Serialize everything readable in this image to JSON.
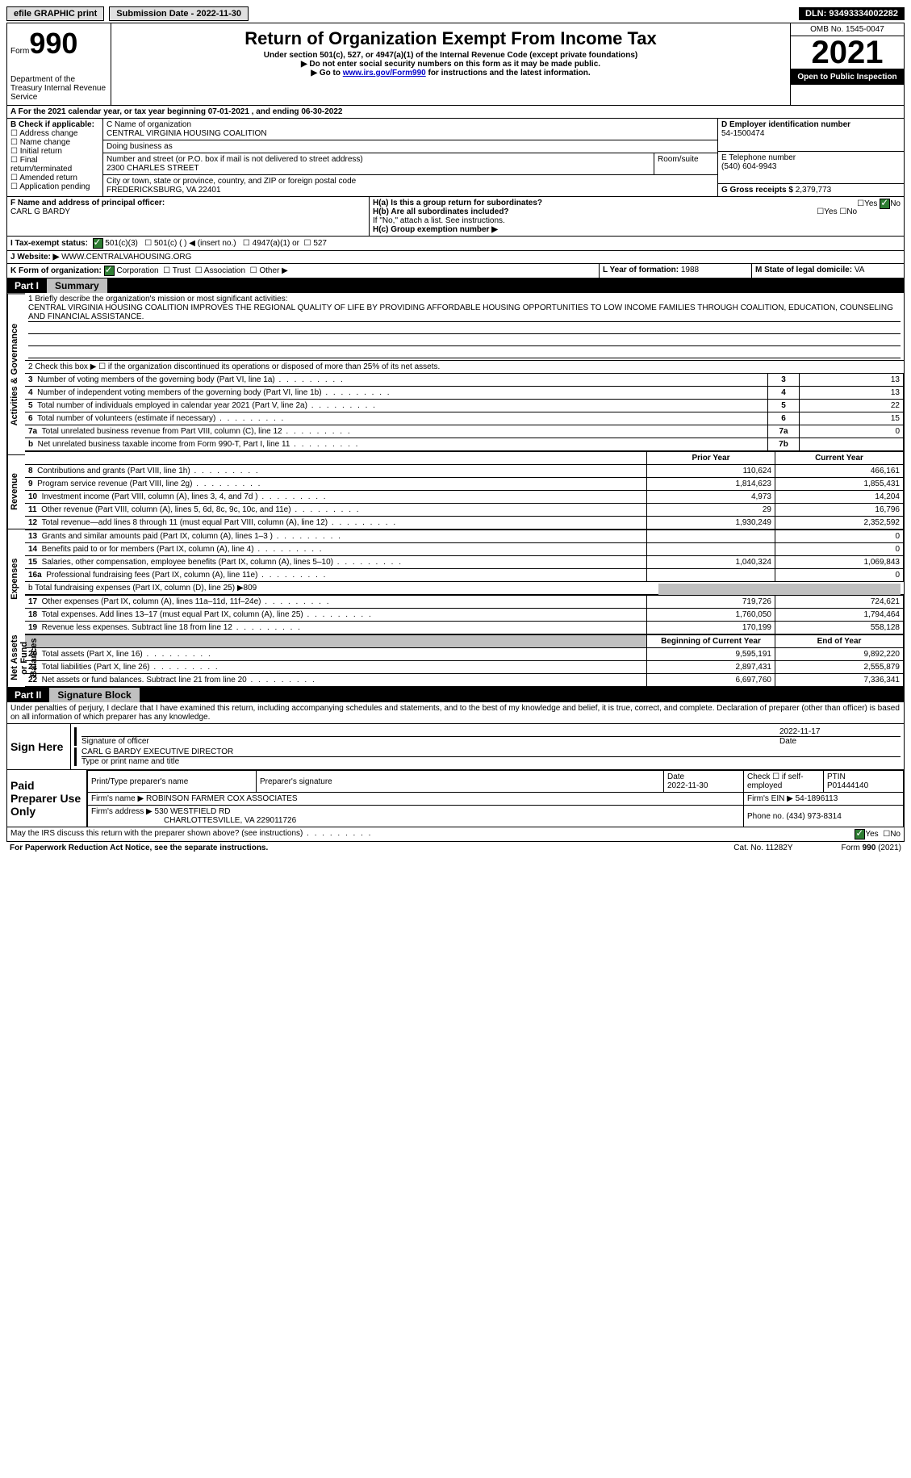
{
  "topbar": {
    "efile": "efile GRAPHIC print",
    "submission_label": "Submission Date - ",
    "submission_date": "2022-11-30",
    "dln_label": "DLN: ",
    "dln": "93493334002282"
  },
  "header": {
    "form_word": "Form",
    "form_num": "990",
    "dept": "Department of the Treasury Internal Revenue Service",
    "title": "Return of Organization Exempt From Income Tax",
    "subtitle": "Under section 501(c), 527, or 4947(a)(1) of the Internal Revenue Code (except private foundations)",
    "note1": "▶ Do not enter social security numbers on this form as it may be made public.",
    "note2_pre": "▶ Go to ",
    "note2_link": "www.irs.gov/Form990",
    "note2_post": " for instructions and the latest information.",
    "omb": "OMB No. 1545-0047",
    "year": "2021",
    "inspect": "Open to Public Inspection"
  },
  "sectionA": {
    "period": "A For the 2021 calendar year, or tax year beginning 07-01-2021   , and ending 06-30-2022",
    "B_label": "B Check if applicable:",
    "B_opts": [
      "Address change",
      "Name change",
      "Initial return",
      "Final return/terminated",
      "Amended return",
      "Application pending"
    ],
    "C_name_label": "C Name of organization",
    "C_name": "CENTRAL VIRGINIA HOUSING COALITION",
    "dba_label": "Doing business as",
    "dba": "",
    "addr_label": "Number and street (or P.O. box if mail is not delivered to street address)",
    "addr": "2300 CHARLES STREET",
    "room_label": "Room/suite",
    "city_label": "City or town, state or province, country, and ZIP or foreign postal code",
    "city": "FREDERICKSBURG, VA   22401",
    "D_label": "D Employer identification number",
    "D_val": "54-1500474",
    "E_label": "E Telephone number",
    "E_val": "(540) 604-9943",
    "G_label": "G Gross receipts $ ",
    "G_val": "2,379,773",
    "F_label": "F Name and address of principal officer:",
    "F_val": "CARL G BARDY",
    "Ha_label": "H(a)  Is this a group return for subordinates?",
    "Hb_label": "H(b)  Are all subordinates included?",
    "H_note": "If \"No,\" attach a list. See instructions.",
    "Hc_label": "H(c)  Group exemption number ▶",
    "yes": "Yes",
    "no": "No",
    "I_label": "I   Tax-exempt status:",
    "I_501c3": "501(c)(3)",
    "I_501c": "501(c) (  ) ◀ (insert no.)",
    "I_4947": "4947(a)(1) or",
    "I_527": "527",
    "J_label": "J   Website: ▶",
    "J_val": "WWW.CENTRALVAHOUSING.ORG",
    "K_label": "K Form of organization:",
    "K_corp": "Corporation",
    "K_trust": "Trust",
    "K_assoc": "Association",
    "K_other": "Other ▶",
    "L_label": "L Year of formation: ",
    "L_val": "1988",
    "M_label": "M State of legal domicile: ",
    "M_val": "VA"
  },
  "part1": {
    "hdr_part": "Part I",
    "hdr_title": "Summary",
    "tab_ag": "Activities & Governance",
    "tab_rev": "Revenue",
    "tab_exp": "Expenses",
    "tab_na": "Net Assets or Fund Balances",
    "l1_label": "1  Briefly describe the organization's mission or most significant activities:",
    "l1_text": "CENTRAL VIRGINIA HOUSING COALITION IMPROVES THE REGIONAL QUALITY OF LIFE BY PROVIDING AFFORDABLE HOUSING OPPORTUNITIES TO LOW INCOME FAMILIES THROUGH COALITION, EDUCATION, COUNSELING AND FINANCIAL ASSISTANCE.",
    "l2": "2   Check this box ▶ ☐ if the organization discontinued its operations or disposed of more than 25% of its net assets.",
    "rows_ag": [
      {
        "n": "3",
        "t": "Number of voting members of the governing body (Part VI, line 1a)",
        "box": "3",
        "v": "13"
      },
      {
        "n": "4",
        "t": "Number of independent voting members of the governing body (Part VI, line 1b)",
        "box": "4",
        "v": "13"
      },
      {
        "n": "5",
        "t": "Total number of individuals employed in calendar year 2021 (Part V, line 2a)",
        "box": "5",
        "v": "22"
      },
      {
        "n": "6",
        "t": "Total number of volunteers (estimate if necessary)",
        "box": "6",
        "v": "15"
      },
      {
        "n": "7a",
        "t": "Total unrelated business revenue from Part VIII, column (C), line 12",
        "box": "7a",
        "v": "0"
      },
      {
        "n": "b",
        "t": "Net unrelated business taxable income from Form 990-T, Part I, line 11",
        "box": "7b",
        "v": ""
      }
    ],
    "col_prior": "Prior Year",
    "col_curr": "Current Year",
    "rows_rev": [
      {
        "n": "8",
        "t": "Contributions and grants (Part VIII, line 1h)",
        "p": "110,624",
        "c": "466,161"
      },
      {
        "n": "9",
        "t": "Program service revenue (Part VIII, line 2g)",
        "p": "1,814,623",
        "c": "1,855,431"
      },
      {
        "n": "10",
        "t": "Investment income (Part VIII, column (A), lines 3, 4, and 7d )",
        "p": "4,973",
        "c": "14,204"
      },
      {
        "n": "11",
        "t": "Other revenue (Part VIII, column (A), lines 5, 6d, 8c, 9c, 10c, and 11e)",
        "p": "29",
        "c": "16,796"
      },
      {
        "n": "12",
        "t": "Total revenue—add lines 8 through 11 (must equal Part VIII, column (A), line 12)",
        "p": "1,930,249",
        "c": "2,352,592"
      }
    ],
    "rows_exp": [
      {
        "n": "13",
        "t": "Grants and similar amounts paid (Part IX, column (A), lines 1–3 )",
        "p": "",
        "c": "0"
      },
      {
        "n": "14",
        "t": "Benefits paid to or for members (Part IX, column (A), line 4)",
        "p": "",
        "c": "0"
      },
      {
        "n": "15",
        "t": "Salaries, other compensation, employee benefits (Part IX, column (A), lines 5–10)",
        "p": "1,040,324",
        "c": "1,069,843"
      },
      {
        "n": "16a",
        "t": "Professional fundraising fees (Part IX, column (A), line 11e)",
        "p": "",
        "c": "0"
      }
    ],
    "l16b": "b  Total fundraising expenses (Part IX, column (D), line 25) ▶809",
    "rows_exp2": [
      {
        "n": "17",
        "t": "Other expenses (Part IX, column (A), lines 11a–11d, 11f–24e)",
        "p": "719,726",
        "c": "724,621"
      },
      {
        "n": "18",
        "t": "Total expenses. Add lines 13–17 (must equal Part IX, column (A), line 25)",
        "p": "1,760,050",
        "c": "1,794,464"
      },
      {
        "n": "19",
        "t": "Revenue less expenses. Subtract line 18 from line 12",
        "p": "170,199",
        "c": "558,128"
      }
    ],
    "col_begin": "Beginning of Current Year",
    "col_end": "End of Year",
    "rows_na": [
      {
        "n": "20",
        "t": "Total assets (Part X, line 16)",
        "p": "9,595,191",
        "c": "9,892,220"
      },
      {
        "n": "21",
        "t": "Total liabilities (Part X, line 26)",
        "p": "2,897,431",
        "c": "2,555,879"
      },
      {
        "n": "22",
        "t": "Net assets or fund balances. Subtract line 21 from line 20",
        "p": "6,697,760",
        "c": "7,336,341"
      }
    ]
  },
  "part2": {
    "hdr_part": "Part II",
    "hdr_title": "Signature Block",
    "declaration": "Under penalties of perjury, I declare that I have examined this return, including accompanying schedules and statements, and to the best of my knowledge and belief, it is true, correct, and complete. Declaration of preparer (other than officer) is based on all information of which preparer has any knowledge.",
    "sign_here": "Sign Here",
    "sig_date": "2022-11-17",
    "sig_officer_lbl": "Signature of officer",
    "date_lbl": "Date",
    "officer_name": "CARL G BARDY  EXECUTIVE DIRECTOR",
    "officer_name_lbl": "Type or print name and title",
    "paid": "Paid Preparer Use Only",
    "prep_name_lbl": "Print/Type preparer's name",
    "prep_sig_lbl": "Preparer's signature",
    "prep_date_lbl": "Date",
    "prep_date": "2022-11-30",
    "self_emp": "Check ☐ if self-employed",
    "ptin_lbl": "PTIN",
    "ptin": "P01444140",
    "firm_name_lbl": "Firm's name      ▶",
    "firm_name": "ROBINSON FARMER COX ASSOCIATES",
    "firm_ein_lbl": "Firm's EIN ▶",
    "firm_ein": "54-1896113",
    "firm_addr_lbl": "Firm's address ▶",
    "firm_addr1": "530 WESTFIELD RD",
    "firm_addr2": "CHARLOTTESVILLE, VA   229011726",
    "phone_lbl": "Phone no. ",
    "phone": "(434) 973-8314",
    "discuss": "May the IRS discuss this return with the preparer shown above? (see instructions)"
  },
  "footer": {
    "paperwork": "For Paperwork Reduction Act Notice, see the separate instructions.",
    "cat": "Cat. No. 11282Y",
    "form": "Form 990 (2021)"
  }
}
